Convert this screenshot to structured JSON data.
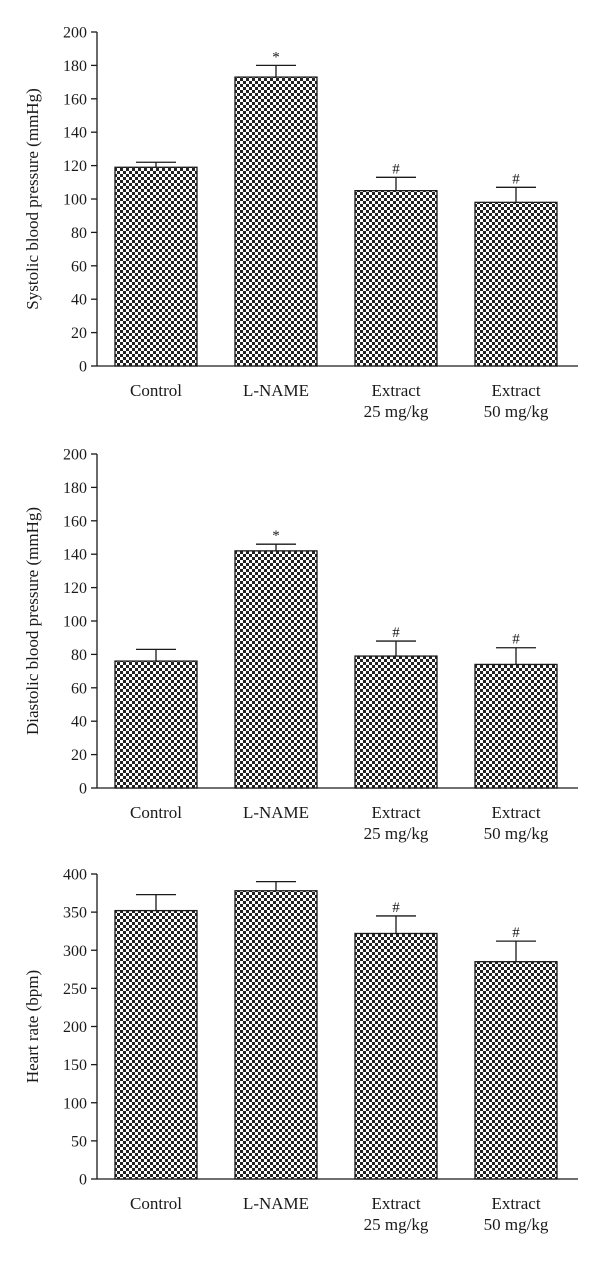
{
  "chart_data": [
    {
      "type": "bar",
      "ylabel": "Systolic blood pressure (mmHg)",
      "ylim": [
        0,
        200
      ],
      "yticks": [
        0,
        20,
        40,
        60,
        80,
        100,
        120,
        140,
        160,
        180,
        200
      ],
      "categories": [
        [
          "Control"
        ],
        [
          "L-NAME"
        ],
        [
          "Extract",
          "25 mg/kg"
        ],
        [
          "Extract",
          "50 mg/kg"
        ]
      ],
      "values": [
        119,
        173,
        105,
        98
      ],
      "errors": [
        3,
        7,
        8,
        9
      ],
      "significance": [
        "",
        "*",
        "#",
        "#"
      ],
      "grid": false
    },
    {
      "type": "bar",
      "ylabel": "Diastolic blood pressure (mmHg)",
      "ylim": [
        0,
        200
      ],
      "yticks": [
        0,
        20,
        40,
        60,
        80,
        100,
        120,
        140,
        160,
        180,
        200
      ],
      "categories": [
        [
          "Control"
        ],
        [
          "L-NAME"
        ],
        [
          "Extract",
          "25 mg/kg"
        ],
        [
          "Extract",
          "50 mg/kg"
        ]
      ],
      "values": [
        76,
        142,
        79,
        74
      ],
      "errors": [
        7,
        4,
        9,
        10
      ],
      "significance": [
        "",
        "*",
        "#",
        "#"
      ],
      "grid": false
    },
    {
      "type": "bar",
      "ylabel": "Heart rate (bpm)",
      "ylim": [
        0,
        400
      ],
      "yticks": [
        0,
        50,
        100,
        150,
        200,
        250,
        300,
        350,
        400
      ],
      "categories": [
        [
          "Control"
        ],
        [
          "L-NAME"
        ],
        [
          "Extract",
          "25 mg/kg"
        ],
        [
          "Extract",
          "50 mg/kg"
        ]
      ],
      "values": [
        352,
        378,
        322,
        285
      ],
      "errors": [
        21,
        12,
        23,
        27
      ],
      "significance": [
        "",
        "",
        "#",
        "#"
      ],
      "grid": false
    }
  ]
}
